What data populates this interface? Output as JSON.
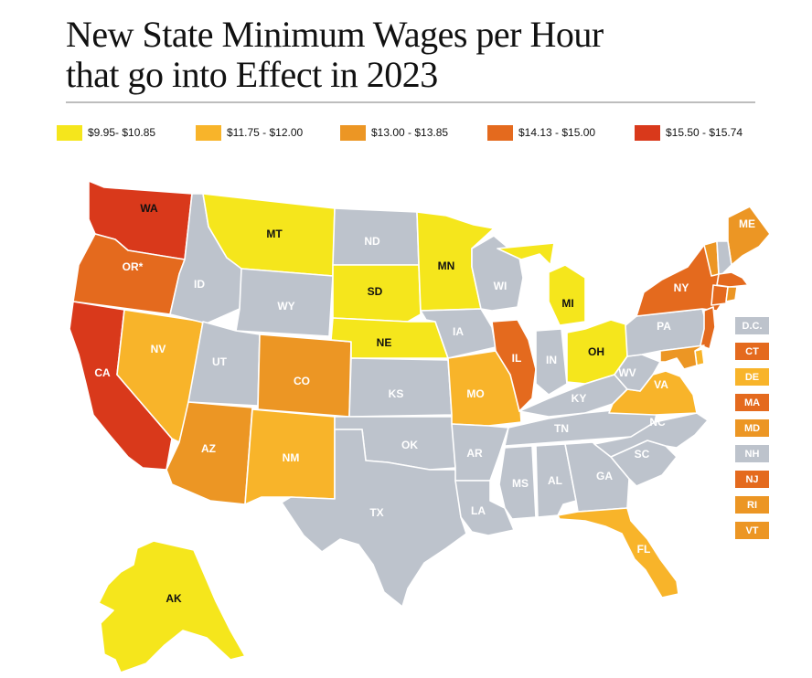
{
  "title_line1": "New State Minimum Wages per Hour",
  "title_line2": "that go into Effect in 2023",
  "legend": [
    {
      "label": "$9.95- $10.85",
      "color": "#f5e61c"
    },
    {
      "label": "$11.75 - $12.00",
      "color": "#f8b42a"
    },
    {
      "label": "$13.00 - $13.85",
      "color": "#ec9624"
    },
    {
      "label": "$14.13 - $15.00",
      "color": "#e46a1e"
    },
    {
      "label": "$15.50 - $15.74",
      "color": "#d9391b"
    }
  ],
  "no_change_color": "#bdc3cc",
  "states": [
    {
      "abbr": "WA",
      "color": "#d9391b"
    },
    {
      "abbr": "OR*",
      "color": "#e46a1e"
    },
    {
      "abbr": "CA",
      "color": "#d9391b"
    },
    {
      "abbr": "NV",
      "color": "#f8b42a"
    },
    {
      "abbr": "ID",
      "color": "#bdc3cc"
    },
    {
      "abbr": "MT",
      "color": "#f5e61c"
    },
    {
      "abbr": "WY",
      "color": "#bdc3cc"
    },
    {
      "abbr": "UT",
      "color": "#bdc3cc"
    },
    {
      "abbr": "AZ",
      "color": "#ec9624"
    },
    {
      "abbr": "CO",
      "color": "#ec9624"
    },
    {
      "abbr": "NM",
      "color": "#f8b42a"
    },
    {
      "abbr": "ND",
      "color": "#bdc3cc"
    },
    {
      "abbr": "SD",
      "color": "#f5e61c"
    },
    {
      "abbr": "NE",
      "color": "#f5e61c"
    },
    {
      "abbr": "KS",
      "color": "#bdc3cc"
    },
    {
      "abbr": "OK",
      "color": "#bdc3cc"
    },
    {
      "abbr": "TX",
      "color": "#bdc3cc"
    },
    {
      "abbr": "MN",
      "color": "#f5e61c"
    },
    {
      "abbr": "IA",
      "color": "#bdc3cc"
    },
    {
      "abbr": "MO",
      "color": "#f8b42a"
    },
    {
      "abbr": "AR",
      "color": "#bdc3cc"
    },
    {
      "abbr": "LA",
      "color": "#bdc3cc"
    },
    {
      "abbr": "WI",
      "color": "#bdc3cc"
    },
    {
      "abbr": "IL",
      "color": "#e46a1e"
    },
    {
      "abbr": "MI",
      "color": "#f5e61c"
    },
    {
      "abbr": "IN",
      "color": "#bdc3cc"
    },
    {
      "abbr": "OH",
      "color": "#f5e61c"
    },
    {
      "abbr": "KY",
      "color": "#bdc3cc"
    },
    {
      "abbr": "TN",
      "color": "#bdc3cc"
    },
    {
      "abbr": "MS",
      "color": "#bdc3cc"
    },
    {
      "abbr": "AL",
      "color": "#bdc3cc"
    },
    {
      "abbr": "GA",
      "color": "#bdc3cc"
    },
    {
      "abbr": "FL",
      "color": "#f8b42a"
    },
    {
      "abbr": "SC",
      "color": "#bdc3cc"
    },
    {
      "abbr": "NC",
      "color": "#bdc3cc"
    },
    {
      "abbr": "VA",
      "color": "#f8b42a"
    },
    {
      "abbr": "WV",
      "color": "#bdc3cc"
    },
    {
      "abbr": "PA",
      "color": "#bdc3cc"
    },
    {
      "abbr": "NY",
      "color": "#e46a1e"
    },
    {
      "abbr": "ME",
      "color": "#ec9624"
    },
    {
      "abbr": "AK",
      "color": "#f5e61c"
    },
    {
      "abbr": "VT",
      "color": "#ec9624"
    },
    {
      "abbr": "NH",
      "color": "#bdc3cc"
    },
    {
      "abbr": "MA",
      "color": "#e46a1e"
    },
    {
      "abbr": "CT",
      "color": "#e46a1e"
    },
    {
      "abbr": "RI",
      "color": "#ec9624"
    },
    {
      "abbr": "NJ",
      "color": "#e46a1e"
    },
    {
      "abbr": "DE",
      "color": "#f8b42a"
    },
    {
      "abbr": "MD",
      "color": "#ec9624"
    }
  ],
  "small_states": [
    {
      "abbr": "D.C.",
      "color": "#bdc3cc"
    },
    {
      "abbr": "CT",
      "color": "#e46a1e"
    },
    {
      "abbr": "DE",
      "color": "#f8b42a"
    },
    {
      "abbr": "MA",
      "color": "#e46a1e"
    },
    {
      "abbr": "MD",
      "color": "#ec9624"
    },
    {
      "abbr": "NH",
      "color": "#bdc3cc"
    },
    {
      "abbr": "NJ",
      "color": "#e46a1e"
    },
    {
      "abbr": "RI",
      "color": "#ec9624"
    },
    {
      "abbr": "VT",
      "color": "#ec9624"
    }
  ]
}
